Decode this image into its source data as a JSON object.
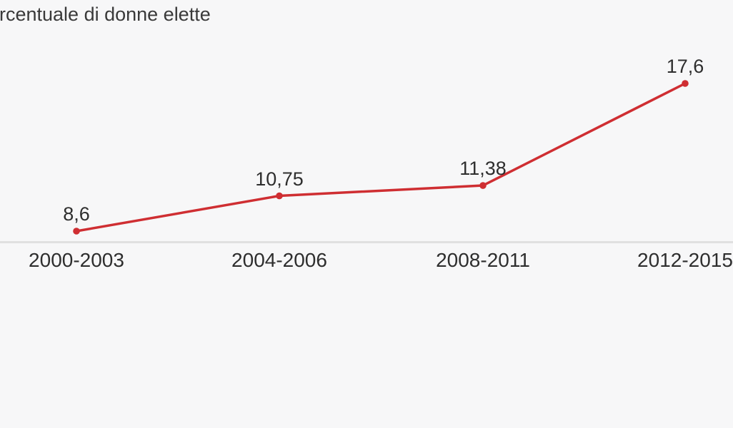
{
  "chart_data": {
    "type": "line",
    "title": "rcentuale di donne elette",
    "categories": [
      "2000-2003",
      "2004-2006",
      "2008-2011",
      "2012-2015"
    ],
    "values": [
      8.6,
      10.75,
      11.38,
      17.6
    ],
    "value_labels": [
      "8,6",
      "10,75",
      "11,38",
      "17,6"
    ],
    "xlabel": "",
    "ylabel": "",
    "ylim": [
      7.95,
      20.5
    ],
    "grid": false,
    "legend": "none",
    "colors": {
      "line": "#cf2e32",
      "marker": "#cf2e32",
      "axis_line": "#e0e0e0",
      "title_text": "#3a3a3a",
      "label_text": "#2e2e2e",
      "background": "#f7f7f8"
    }
  }
}
